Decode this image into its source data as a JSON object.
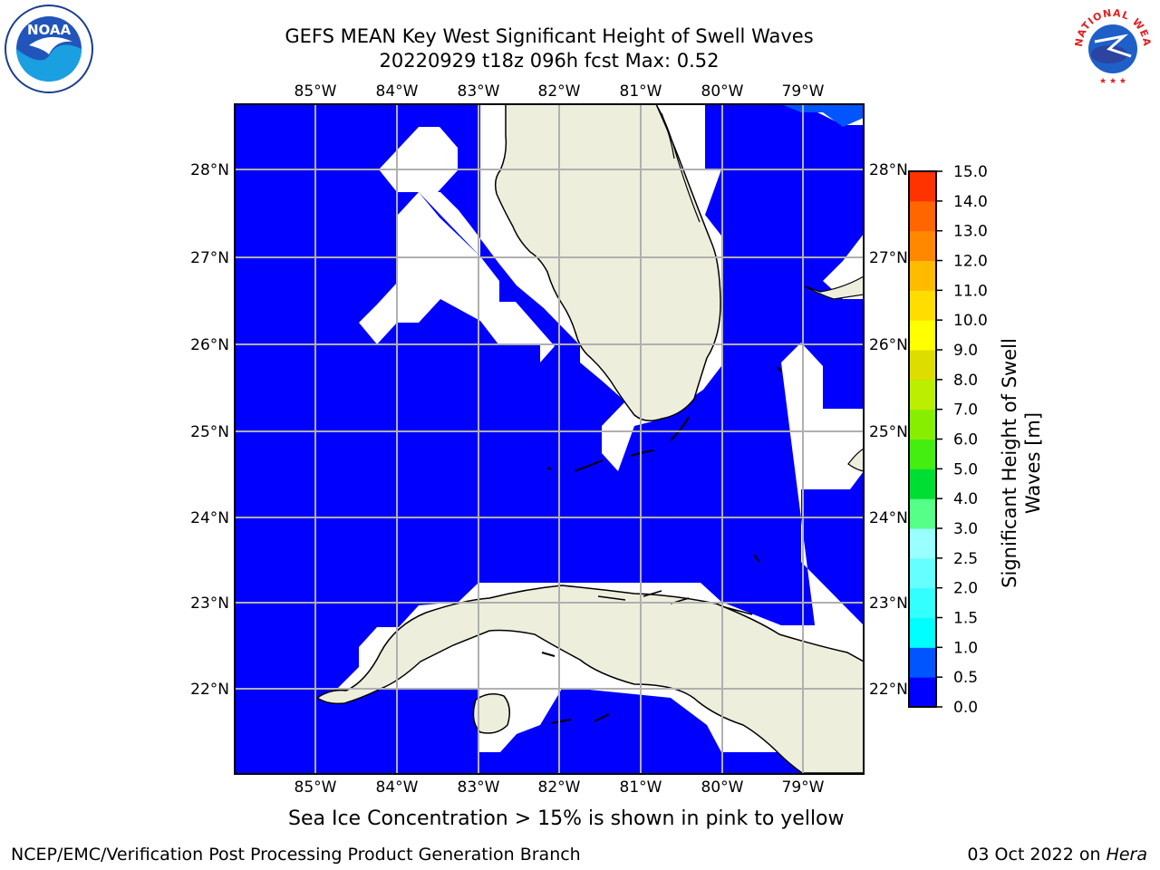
{
  "title": {
    "line1": "GEFS MEAN Key West Significant Height of Swell Waves",
    "line2": "20220929 t18z 096h fcst   Max: 0.52"
  },
  "map": {
    "lon_labels": [
      "85°W",
      "84°W",
      "83°W",
      "82°W",
      "81°W",
      "80°W",
      "79°W"
    ],
    "lat_labels": [
      "28°N",
      "27°N",
      "26°N",
      "25°N",
      "24°N",
      "23°N",
      "22°N"
    ],
    "colors": {
      "ocean": "#0000ff",
      "land": "#eeeedd",
      "mask": "#ffffff",
      "grid": "#b0b0b0",
      "swell_0_5_1_0": "#0055ff"
    }
  },
  "colorbar": {
    "label_line1": "Significant Height of Swell",
    "label_line2": "Waves [m]",
    "ticks": [
      "0.0",
      "0.5",
      "1.0",
      "1.5",
      "2.0",
      "2.5",
      "3.0",
      "4.0",
      "5.0",
      "6.0",
      "7.0",
      "8.0",
      "9.0",
      "10.0",
      "11.0",
      "12.0",
      "13.0",
      "14.0",
      "15.0"
    ],
    "colors": [
      "#0000ff",
      "#0055ff",
      "#00ffff",
      "#33ffff",
      "#66ffff",
      "#99ffff",
      "#55ff88",
      "#00dd33",
      "#44ee11",
      "#88ee00",
      "#bbee00",
      "#dddd00",
      "#ffff00",
      "#ffdd00",
      "#ffbb00",
      "#ff8800",
      "#ff6600",
      "#ff3300",
      "#ff0000"
    ]
  },
  "footer": {
    "note": "Sea Ice Concentration > 15% is shown in pink to yellow",
    "credit": "NCEP/EMC/Verification Post Processing Product Generation Branch",
    "date": "03 Oct 2022",
    "on": "on",
    "host": "Hera"
  },
  "logos": {
    "noaa": "NOAA",
    "nws": "NATIONAL WEATHER SERVICE"
  }
}
